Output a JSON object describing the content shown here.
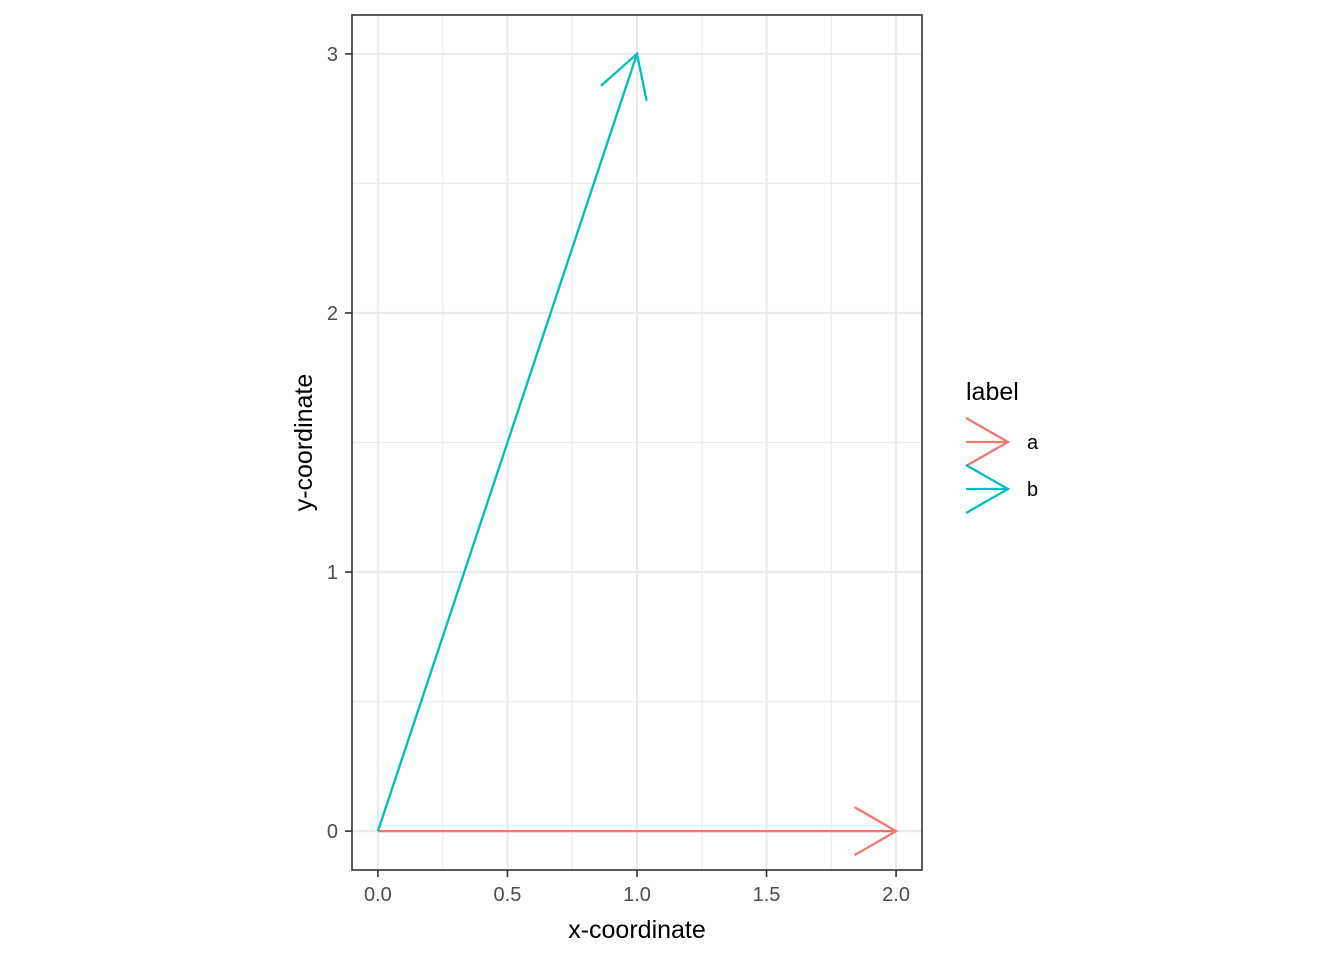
{
  "chart_data": {
    "type": "line",
    "xlabel": "x-coordinate",
    "ylabel": "y-coordinate",
    "xlim": [
      -0.1,
      2.1
    ],
    "ylim": [
      -0.15,
      3.15
    ],
    "x_ticks": [
      "0.0",
      "0.5",
      "1.0",
      "1.5",
      "2.0"
    ],
    "x_tick_values": [
      0,
      0.5,
      1.0,
      1.5,
      2.0
    ],
    "y_ticks": [
      "0",
      "1",
      "2",
      "3"
    ],
    "y_tick_values": [
      0,
      1,
      2,
      3
    ],
    "x_minor_values": [
      0.25,
      0.75,
      1.25,
      1.75
    ],
    "y_minor_values": [
      0.5,
      1.5,
      2.5
    ],
    "grid": true,
    "legend": {
      "title": "label",
      "position": "right"
    },
    "series": [
      {
        "name": "a",
        "color": "#F8766D",
        "x": [
          0,
          2
        ],
        "y": [
          0,
          0
        ],
        "arrow": "end"
      },
      {
        "name": "b",
        "color": "#00BFC4",
        "x": [
          0,
          1
        ],
        "y": [
          0,
          3
        ],
        "arrow": "end"
      }
    ]
  }
}
